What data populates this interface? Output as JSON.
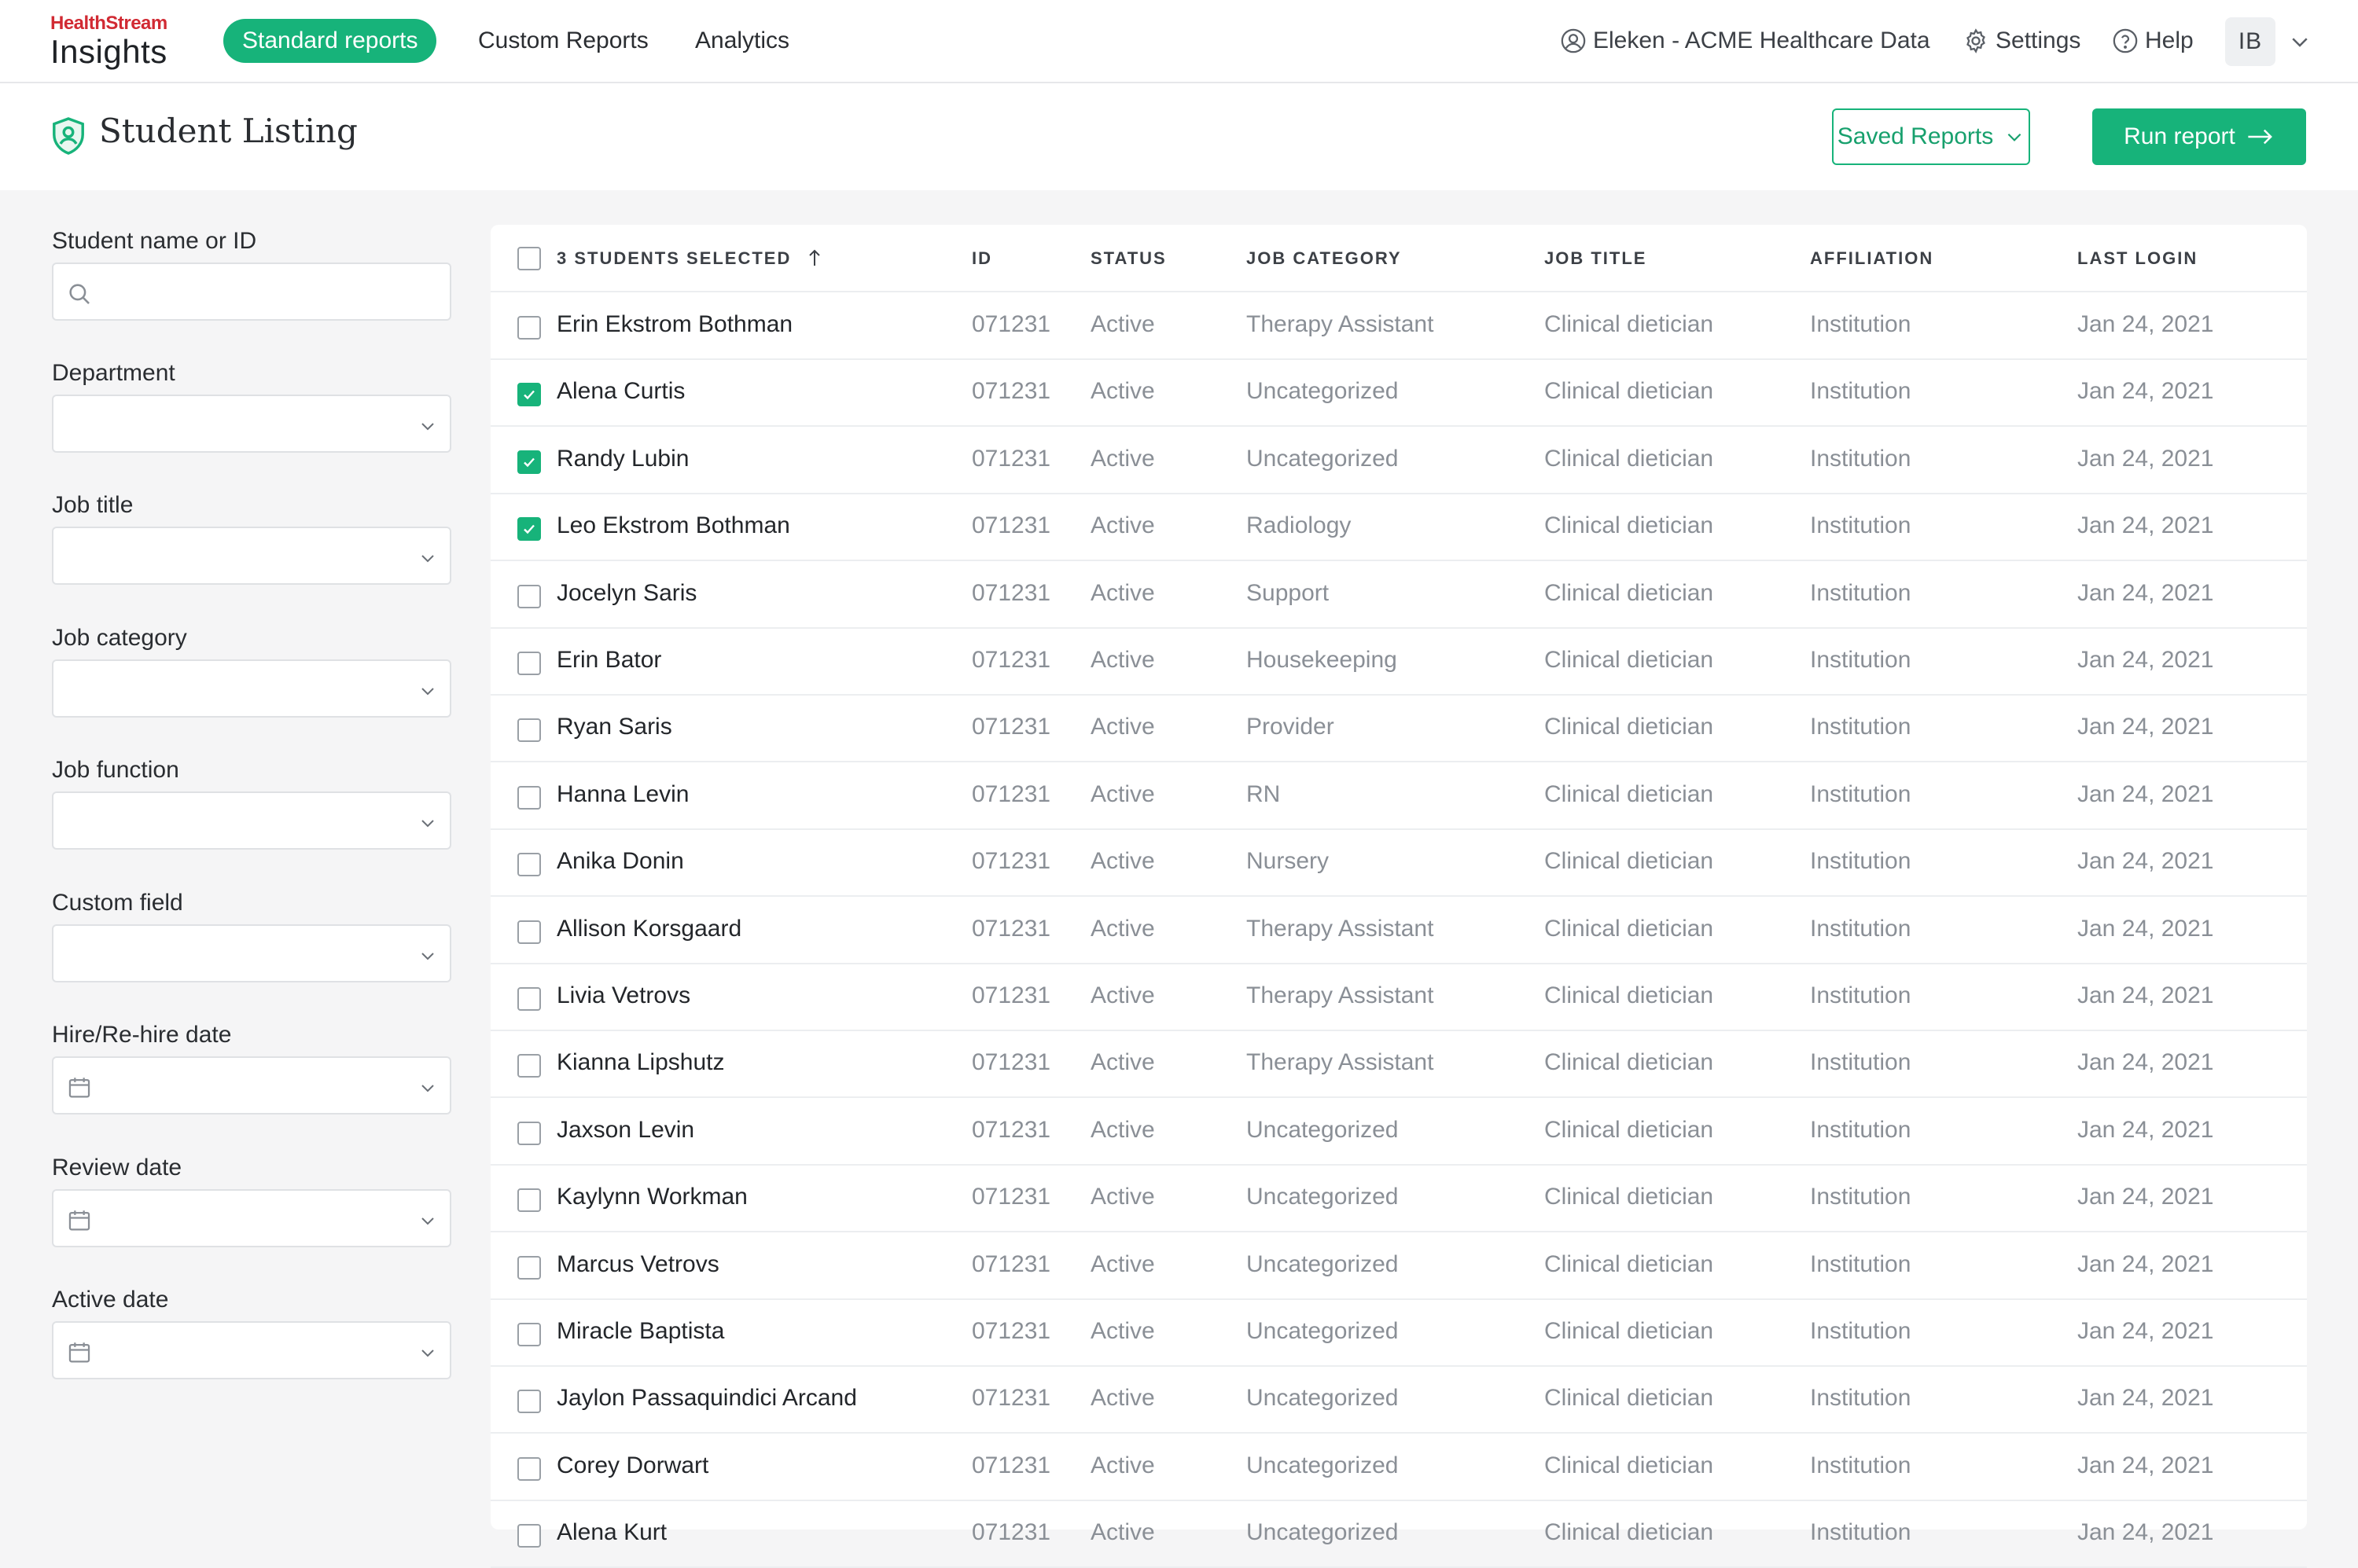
{
  "app": {
    "brand_top": "HealthStream",
    "brand_product": "Insights"
  },
  "nav": {
    "tabs": [
      {
        "label": "Standard reports",
        "active": true
      },
      {
        "label": "Custom Reports",
        "active": false
      },
      {
        "label": "Analytics",
        "active": false
      }
    ],
    "org_name": "Eleken - ACME Healthcare Data",
    "settings_label": "Settings",
    "help_label": "Help",
    "user_initials": "IB"
  },
  "page": {
    "title": "Student Listing",
    "saved_reports_label": "Saved Reports",
    "run_report_label": "Run report"
  },
  "filters": [
    {
      "label": "Student name or ID",
      "type": "search",
      "value": ""
    },
    {
      "label": "Department",
      "type": "select",
      "value": ""
    },
    {
      "label": "Job title",
      "type": "select",
      "value": ""
    },
    {
      "label": "Job category",
      "type": "select",
      "value": ""
    },
    {
      "label": "Job function",
      "type": "select",
      "value": ""
    },
    {
      "label": "Custom field",
      "type": "select",
      "value": ""
    },
    {
      "label": "Hire/Re-hire date",
      "type": "date",
      "value": ""
    },
    {
      "label": "Review date",
      "type": "date",
      "value": ""
    },
    {
      "label": "Active date",
      "type": "date",
      "value": ""
    }
  ],
  "table": {
    "selected_label": "3 STUDENTS SELECTED",
    "columns": [
      "ID",
      "STATUS",
      "JOB CATEGORY",
      "JOB TITLE",
      "AFFILIATION",
      "LAST LOGIN"
    ],
    "rows": [
      {
        "checked": false,
        "name": "Erin Ekstrom Bothman",
        "id": "071231",
        "status": "Active",
        "category": "Therapy Assistant",
        "title": "Clinical dietician",
        "affiliation": "Institution",
        "last_login": "Jan 24, 2021"
      },
      {
        "checked": true,
        "name": "Alena Curtis",
        "id": "071231",
        "status": "Active",
        "category": "Uncategorized",
        "title": "Clinical dietician",
        "affiliation": "Institution",
        "last_login": "Jan 24, 2021"
      },
      {
        "checked": true,
        "name": "Randy Lubin",
        "id": "071231",
        "status": "Active",
        "category": "Uncategorized",
        "title": "Clinical dietician",
        "affiliation": "Institution",
        "last_login": "Jan 24, 2021"
      },
      {
        "checked": true,
        "name": "Leo Ekstrom Bothman",
        "id": "071231",
        "status": "Active",
        "category": "Radiology",
        "title": "Clinical dietician",
        "affiliation": "Institution",
        "last_login": "Jan 24, 2021"
      },
      {
        "checked": false,
        "name": "Jocelyn Saris",
        "id": "071231",
        "status": "Active",
        "category": "Support",
        "title": "Clinical dietician",
        "affiliation": "Institution",
        "last_login": "Jan 24, 2021"
      },
      {
        "checked": false,
        "name": "Erin Bator",
        "id": "071231",
        "status": "Active",
        "category": "Housekeeping",
        "title": "Clinical dietician",
        "affiliation": "Institution",
        "last_login": "Jan 24, 2021"
      },
      {
        "checked": false,
        "name": "Ryan Saris",
        "id": "071231",
        "status": "Active",
        "category": "Provider",
        "title": "Clinical dietician",
        "affiliation": "Institution",
        "last_login": "Jan 24, 2021"
      },
      {
        "checked": false,
        "name": "Hanna Levin",
        "id": "071231",
        "status": "Active",
        "category": "RN",
        "title": "Clinical dietician",
        "affiliation": "Institution",
        "last_login": "Jan 24, 2021"
      },
      {
        "checked": false,
        "name": "Anika Donin",
        "id": "071231",
        "status": "Active",
        "category": "Nursery",
        "title": "Clinical dietician",
        "affiliation": "Institution",
        "last_login": "Jan 24, 2021"
      },
      {
        "checked": false,
        "name": "Allison Korsgaard",
        "id": "071231",
        "status": "Active",
        "category": "Therapy Assistant",
        "title": "Clinical dietician",
        "affiliation": "Institution",
        "last_login": "Jan 24, 2021"
      },
      {
        "checked": false,
        "name": "Livia Vetrovs",
        "id": "071231",
        "status": "Active",
        "category": "Therapy Assistant",
        "title": "Clinical dietician",
        "affiliation": "Institution",
        "last_login": "Jan 24, 2021"
      },
      {
        "checked": false,
        "name": "Kianna Lipshutz",
        "id": "071231",
        "status": "Active",
        "category": "Therapy Assistant",
        "title": "Clinical dietician",
        "affiliation": "Institution",
        "last_login": "Jan 24, 2021"
      },
      {
        "checked": false,
        "name": "Jaxson Levin",
        "id": "071231",
        "status": "Active",
        "category": "Uncategorized",
        "title": "Clinical dietician",
        "affiliation": "Institution",
        "last_login": "Jan 24, 2021"
      },
      {
        "checked": false,
        "name": "Kaylynn Workman",
        "id": "071231",
        "status": "Active",
        "category": "Uncategorized",
        "title": "Clinical dietician",
        "affiliation": "Institution",
        "last_login": "Jan 24, 2021"
      },
      {
        "checked": false,
        "name": "Marcus Vetrovs",
        "id": "071231",
        "status": "Active",
        "category": "Uncategorized",
        "title": "Clinical dietician",
        "affiliation": "Institution",
        "last_login": "Jan 24, 2021"
      },
      {
        "checked": false,
        "name": "Miracle Baptista",
        "id": "071231",
        "status": "Active",
        "category": "Uncategorized",
        "title": "Clinical dietician",
        "affiliation": "Institution",
        "last_login": "Jan 24, 2021"
      },
      {
        "checked": false,
        "name": "Jaylon Passaquindici Arcand",
        "id": "071231",
        "status": "Active",
        "category": "Uncategorized",
        "title": "Clinical dietician",
        "affiliation": "Institution",
        "last_login": "Jan 24, 2021"
      },
      {
        "checked": false,
        "name": "Corey Dorwart",
        "id": "071231",
        "status": "Active",
        "category": "Uncategorized",
        "title": "Clinical dietician",
        "affiliation": "Institution",
        "last_login": "Jan 24, 2021"
      },
      {
        "checked": false,
        "name": "Alena Kurt",
        "id": "071231",
        "status": "Active",
        "category": "Uncategorized",
        "title": "Clinical dietician",
        "affiliation": "Institution",
        "last_login": "Jan 24, 2021"
      }
    ]
  },
  "colors": {
    "accent": "#17b37a",
    "brand_red": "#d12a33"
  },
  "icons": {
    "org": "user-circle-icon",
    "settings": "gear-icon",
    "help": "question-circle-icon",
    "page": "shield-user-icon",
    "search": "search-icon",
    "date": "calendar-icon"
  }
}
